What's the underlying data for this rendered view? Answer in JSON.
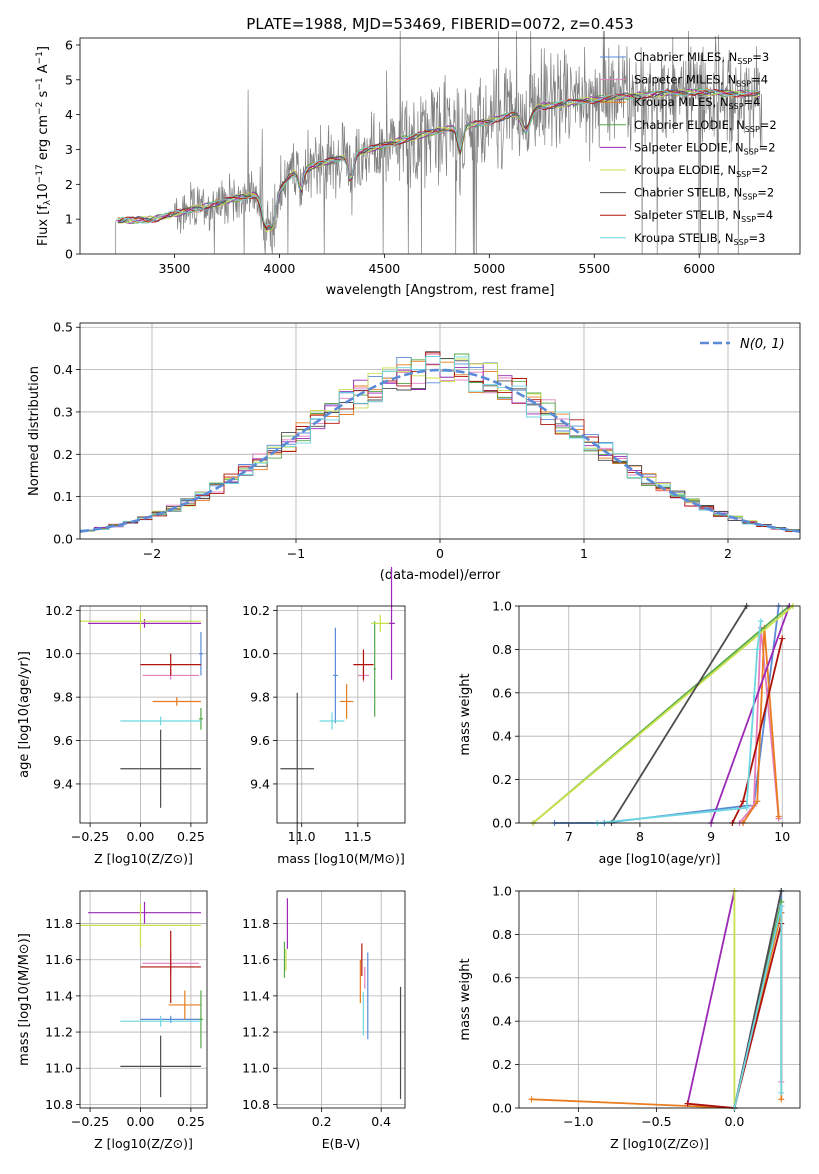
{
  "colors": {
    "Chabrier MILES": "#5b8bd6",
    "Salpeter MILES": "#e37fbf",
    "Kroupa MILES": "#e87c1e",
    "Chabrier ELODIE": "#55a84a",
    "Salpeter ELODIE": "#9b28b6",
    "Kroupa ELODIE": "#c8e04a",
    "Chabrier STELIB": "#4d4d4d",
    "Salpeter STELIB": "#b0130c",
    "Kroupa STELIB": "#6dd6e0",
    "data": "#808080",
    "gauss": "#5b8bd6"
  },
  "chart_data": [
    {
      "type": "line",
      "title": "PLATE=1988, MJD=53469, FIBERID=0072, z=0.453",
      "xlabel": "wavelength [Angstrom, rest frame]",
      "ylabel": "Flux [f_λ 10^-17 erg cm^-2 s^-1 A^-1]",
      "xlim": [
        3050,
        6480
      ],
      "ylim": [
        0,
        6.2
      ],
      "xticks": [
        "3500",
        "4000",
        "4500",
        "5000",
        "5500",
        "6000"
      ],
      "yticks": [
        "0",
        "1",
        "2",
        "3",
        "4",
        "5",
        "6"
      ],
      "continuum_nodes_x": [
        3220,
        3400,
        3600,
        3800,
        3950,
        4050,
        4200,
        4400,
        4600,
        4800,
        5000,
        5200,
        5400,
        5600,
        5800,
        6000,
        6200,
        6300
      ],
      "continuum_nodes_y": [
        0.95,
        1.0,
        1.3,
        1.6,
        1.8,
        2.3,
        2.6,
        2.95,
        3.3,
        3.6,
        3.8,
        4.2,
        4.35,
        4.5,
        4.6,
        4.65,
        4.6,
        4.6
      ],
      "legend_position": "upper right",
      "legend": [
        {
          "model": "Chabrier MILES",
          "label": "Chabrier MILES, N",
          "sub": "SSP",
          "value": "=3"
        },
        {
          "model": "Salpeter MILES",
          "label": "Salpeter MILES, N",
          "sub": "SSP",
          "value": "=4"
        },
        {
          "model": "Kroupa MILES",
          "label": "Kroupa MILES, N",
          "sub": "SSP",
          "value": "=4"
        },
        {
          "model": "Chabrier ELODIE",
          "label": "Chabrier ELODIE, N",
          "sub": "SSP",
          "value": "=2"
        },
        {
          "model": "Salpeter ELODIE",
          "label": "Salpeter ELODIE, N",
          "sub": "SSP",
          "value": "=2"
        },
        {
          "model": "Kroupa ELODIE",
          "label": "Kroupa ELODIE, N",
          "sub": "SSP",
          "value": "=2"
        },
        {
          "model": "Chabrier STELIB",
          "label": "Chabrier STELIB, N",
          "sub": "SSP",
          "value": "=2"
        },
        {
          "model": "Salpeter STELIB",
          "label": "Salpeter STELIB, N",
          "sub": "SSP",
          "value": "=4"
        },
        {
          "model": "Kroupa STELIB",
          "label": "Kroupa STELIB, N",
          "sub": "SSP",
          "value": "=3"
        }
      ]
    },
    {
      "type": "histogram",
      "xlabel": "(data-model)/error",
      "ylabel": "Normed distribution",
      "xlim": [
        -2.5,
        2.5
      ],
      "ylim": [
        0,
        0.51
      ],
      "xticks": [
        "−2",
        "−1",
        "0",
        "1",
        "2"
      ],
      "yticks": [
        "0.0",
        "0.1",
        "0.2",
        "0.3",
        "0.4",
        "0.5"
      ],
      "bin_width": 0.1,
      "gaussian_label": "N(0, 1)",
      "legend_position": "upper right"
    },
    {
      "type": "scatter",
      "name": "age-vs-metallicity",
      "xlabel": "Z [log10(Z/Z⊙)]",
      "ylabel": "age [log10(age/yr)]",
      "xlim": [
        -0.3,
        0.33
      ],
      "ylim": [
        9.22,
        10.22
      ],
      "xticks": [
        "−0.25",
        "0.00",
        "0.25"
      ],
      "yticks": [
        "9.4",
        "9.6",
        "9.8",
        "10.0",
        "10.2"
      ],
      "points": [
        {
          "model": "Chabrier MILES",
          "z": 0.3,
          "zerr": 0.01,
          "age": 10.0,
          "ageerr": 0.1
        },
        {
          "model": "Salpeter MILES",
          "z": 0.15,
          "zerr": 0.14,
          "age": 9.9,
          "ageerr": 0.02
        },
        {
          "model": "Kroupa MILES",
          "z": 0.18,
          "zerr": 0.12,
          "age": 9.78,
          "ageerr": 0.02
        },
        {
          "model": "Chabrier ELODIE",
          "z": 0.3,
          "zerr": 0.01,
          "age": 9.7,
          "ageerr": 0.05
        },
        {
          "model": "Salpeter ELODIE",
          "z": 0.02,
          "zerr": 0.28,
          "age": 10.14,
          "ageerr": 0.02
        },
        {
          "model": "Kroupa ELODIE",
          "z": 0.0,
          "zerr": 0.3,
          "age": 10.15,
          "ageerr": 0.04
        },
        {
          "model": "Chabrier STELIB",
          "z": 0.1,
          "zerr": 0.2,
          "age": 9.47,
          "ageerr": 0.18
        },
        {
          "model": "Salpeter STELIB",
          "z": 0.15,
          "zerr": 0.15,
          "age": 9.95,
          "ageerr": 0.05
        },
        {
          "model": "Kroupa STELIB",
          "z": 0.1,
          "zerr": 0.2,
          "age": 9.69,
          "ageerr": 0.02
        }
      ]
    },
    {
      "type": "scatter",
      "name": "age-vs-mass",
      "xlabel": "mass [log10(M/M⊙)]",
      "ylabel": "",
      "xlim": [
        10.78,
        11.92
      ],
      "ylim": [
        9.22,
        10.22
      ],
      "xticks": [
        "11.0",
        "11.5"
      ],
      "yticks": [
        "9.4",
        "9.6",
        "9.8",
        "10.0",
        "10.2"
      ],
      "points": [
        {
          "model": "Chabrier MILES",
          "mass": 11.3,
          "masserr": 0.02,
          "age": 9.9,
          "ageerr": 0.22
        },
        {
          "model": "Salpeter MILES",
          "mass": 11.55,
          "masserr": 0.05,
          "age": 9.9,
          "ageerr": 0.03
        },
        {
          "model": "Kroupa MILES",
          "mass": 11.4,
          "masserr": 0.06,
          "age": 9.78,
          "ageerr": 0.08
        },
        {
          "model": "Chabrier ELODIE",
          "mass": 11.65,
          "masserr": 0.01,
          "age": 9.93,
          "ageerr": 0.22
        },
        {
          "model": "Salpeter ELODIE",
          "mass": 11.8,
          "masserr": 0.03,
          "age": 10.14,
          "ageerr": 0.26
        },
        {
          "model": "Kroupa ELODIE",
          "mass": 11.7,
          "masserr": 0.08,
          "age": 10.14,
          "ageerr": 0.04
        },
        {
          "model": "Chabrier STELIB",
          "mass": 10.96,
          "masserr": 0.15,
          "age": 9.47,
          "ageerr": 0.35
        },
        {
          "model": "Salpeter STELIB",
          "mass": 11.55,
          "masserr": 0.09,
          "age": 9.95,
          "ageerr": 0.07
        },
        {
          "model": "Kroupa STELIB",
          "mass": 11.27,
          "masserr": 0.11,
          "age": 9.69,
          "ageerr": 0.04
        }
      ]
    },
    {
      "type": "line",
      "name": "weight-vs-age",
      "xlabel": "age [log10(age/yr)]",
      "ylabel": "mass weight",
      "xlim": [
        6.3,
        10.25
      ],
      "ylim": [
        0,
        1
      ],
      "xticks": [
        "7",
        "8",
        "9",
        "10"
      ],
      "yticks": [
        "0.0",
        "0.2",
        "0.4",
        "0.6",
        "0.8",
        "1.0"
      ],
      "series": [
        {
          "model": "Chabrier MILES",
          "x": [
            6.8,
            7.5,
            9.5,
            9.6,
            9.95
          ],
          "y": [
            0.0,
            0.0,
            0.08,
            0.08,
            1.0
          ]
        },
        {
          "model": "Salpeter MILES",
          "x": [
            9.4,
            9.6,
            9.7,
            9.95
          ],
          "y": [
            0.0,
            0.08,
            0.9,
            0.02
          ]
        },
        {
          "model": "Kroupa MILES",
          "x": [
            9.45,
            9.65,
            9.75,
            9.95
          ],
          "y": [
            0.0,
            0.1,
            0.9,
            0.03
          ]
        },
        {
          "model": "Chabrier ELODIE",
          "x": [
            6.5,
            10.1
          ],
          "y": [
            0.0,
            1.0
          ]
        },
        {
          "model": "Salpeter ELODIE",
          "x": [
            9.0,
            10.1
          ],
          "y": [
            0.0,
            1.0
          ]
        },
        {
          "model": "Kroupa ELODIE",
          "x": [
            6.5,
            10.15
          ],
          "y": [
            0.0,
            1.0
          ]
        },
        {
          "model": "Chabrier STELIB",
          "x": [
            7.6,
            9.5
          ],
          "y": [
            0.0,
            1.0
          ]
        },
        {
          "model": "Salpeter STELIB",
          "x": [
            9.3,
            9.45,
            10.0
          ],
          "y": [
            0.0,
            0.1,
            0.85
          ]
        },
        {
          "model": "Kroupa STELIB",
          "x": [
            7.4,
            9.5,
            9.65,
            9.7
          ],
          "y": [
            0.0,
            0.07,
            0.8,
            0.93
          ]
        }
      ]
    },
    {
      "type": "scatter",
      "name": "mass-vs-metallicity",
      "xlabel": "Z [log10(Z/Z⊙)]",
      "ylabel": "mass [log10(M/M⊙)]",
      "xlim": [
        -0.3,
        0.33
      ],
      "ylim": [
        10.78,
        11.98
      ],
      "xticks": [
        "−0.25",
        "0.00",
        "0.25"
      ],
      "yticks": [
        "10.8",
        "11.0",
        "11.2",
        "11.4",
        "11.6",
        "11.8"
      ],
      "points": [
        {
          "model": "Chabrier MILES",
          "z": 0.15,
          "zerr": 0.15,
          "mass": 11.27,
          "masserr": 0.02
        },
        {
          "model": "Salpeter MILES",
          "z": 0.15,
          "zerr": 0.14,
          "mass": 11.58,
          "masserr": 0.06
        },
        {
          "model": "Kroupa MILES",
          "z": 0.22,
          "zerr": 0.08,
          "mass": 11.35,
          "masserr": 0.08
        },
        {
          "model": "Chabrier ELODIE",
          "z": 0.3,
          "zerr": 0.01,
          "mass": 11.27,
          "masserr": 0.16
        },
        {
          "model": "Salpeter ELODIE",
          "z": 0.02,
          "zerr": 0.28,
          "mass": 11.86,
          "masserr": 0.06
        },
        {
          "model": "Kroupa ELODIE",
          "z": 0.0,
          "zerr": 0.3,
          "mass": 11.79,
          "masserr": 0.12
        },
        {
          "model": "Chabrier STELIB",
          "z": 0.1,
          "zerr": 0.2,
          "mass": 11.01,
          "masserr": 0.17
        },
        {
          "model": "Salpeter STELIB",
          "z": 0.15,
          "zerr": 0.15,
          "mass": 11.56,
          "masserr": 0.2
        },
        {
          "model": "Kroupa STELIB",
          "z": 0.1,
          "zerr": 0.2,
          "mass": 11.26,
          "masserr": 0.03
        }
      ]
    },
    {
      "type": "scatter",
      "name": "mass-vs-extinction",
      "xlabel": "E(B-V)",
      "ylabel": "",
      "xlim": [
        0.05,
        0.48
      ],
      "ylim": [
        10.78,
        11.98
      ],
      "xticks": [
        "0.2",
        "0.4"
      ],
      "yticks": [
        "10.8",
        "11.0",
        "11.2",
        "11.4",
        "11.6",
        "11.8"
      ],
      "points": [
        {
          "model": "Chabrier MILES",
          "ebv": 0.355,
          "mass": 11.4,
          "masserr": 0.24
        },
        {
          "model": "Salpeter MILES",
          "ebv": 0.345,
          "mass": 11.5,
          "masserr": 0.06
        },
        {
          "model": "Kroupa MILES",
          "ebv": 0.33,
          "mass": 11.48,
          "masserr": 0.12
        },
        {
          "model": "Chabrier ELODIE",
          "ebv": 0.075,
          "mass": 11.6,
          "masserr": 0.1
        },
        {
          "model": "Salpeter ELODIE",
          "ebv": 0.085,
          "mass": 11.8,
          "masserr": 0.14
        },
        {
          "model": "Kroupa ELODIE",
          "ebv": 0.08,
          "mass": 11.6,
          "masserr": 0.06
        },
        {
          "model": "Chabrier STELIB",
          "ebv": 0.465,
          "mass": 11.14,
          "masserr": 0.31
        },
        {
          "model": "Salpeter STELIB",
          "ebv": 0.335,
          "mass": 11.6,
          "masserr": 0.09
        },
        {
          "model": "Kroupa STELIB",
          "ebv": 0.34,
          "mass": 11.3,
          "masserr": 0.12
        }
      ]
    },
    {
      "type": "line",
      "name": "weight-vs-metallicity",
      "xlabel": "Z [log10(Z/Z⊙)]",
      "ylabel": "mass weight",
      "xlim": [
        -1.38,
        0.42
      ],
      "ylim": [
        0,
        1
      ],
      "xticks": [
        "−1.0",
        "−0.5",
        "0.0"
      ],
      "yticks": [
        "0.0",
        "0.2",
        "0.4",
        "0.6",
        "0.8",
        "1.0"
      ],
      "series": [
        {
          "model": "Chabrier MILES",
          "x": [
            0.0,
            0.3,
            0.3
          ],
          "y": [
            0.0,
            1.0,
            0.9
          ]
        },
        {
          "model": "Salpeter MILES",
          "x": [
            0.0,
            0.3,
            0.3
          ],
          "y": [
            0.0,
            0.93,
            0.12
          ]
        },
        {
          "model": "Kroupa MILES",
          "x": [
            -1.3,
            0.0,
            0.3,
            0.3
          ],
          "y": [
            0.04,
            0.0,
            0.9,
            0.04
          ]
        },
        {
          "model": "Chabrier ELODIE",
          "x": [
            0.0,
            0.3
          ],
          "y": [
            0.0,
            0.95
          ]
        },
        {
          "model": "Salpeter ELODIE",
          "x": [
            -0.3,
            0.0
          ],
          "y": [
            0.02,
            1.0
          ]
        },
        {
          "model": "Kroupa ELODIE",
          "x": [
            0.0,
            0.0
          ],
          "y": [
            0.0,
            1.0
          ]
        },
        {
          "model": "Chabrier STELIB",
          "x": [
            0.0,
            0.3
          ],
          "y": [
            0.0,
            1.0
          ]
        },
        {
          "model": "Salpeter STELIB",
          "x": [
            -0.3,
            0.0,
            0.3
          ],
          "y": [
            0.02,
            0.0,
            0.85
          ]
        },
        {
          "model": "Kroupa STELIB",
          "x": [
            0.0,
            0.3,
            0.3
          ],
          "y": [
            0.0,
            0.93,
            0.07
          ]
        }
      ]
    }
  ]
}
